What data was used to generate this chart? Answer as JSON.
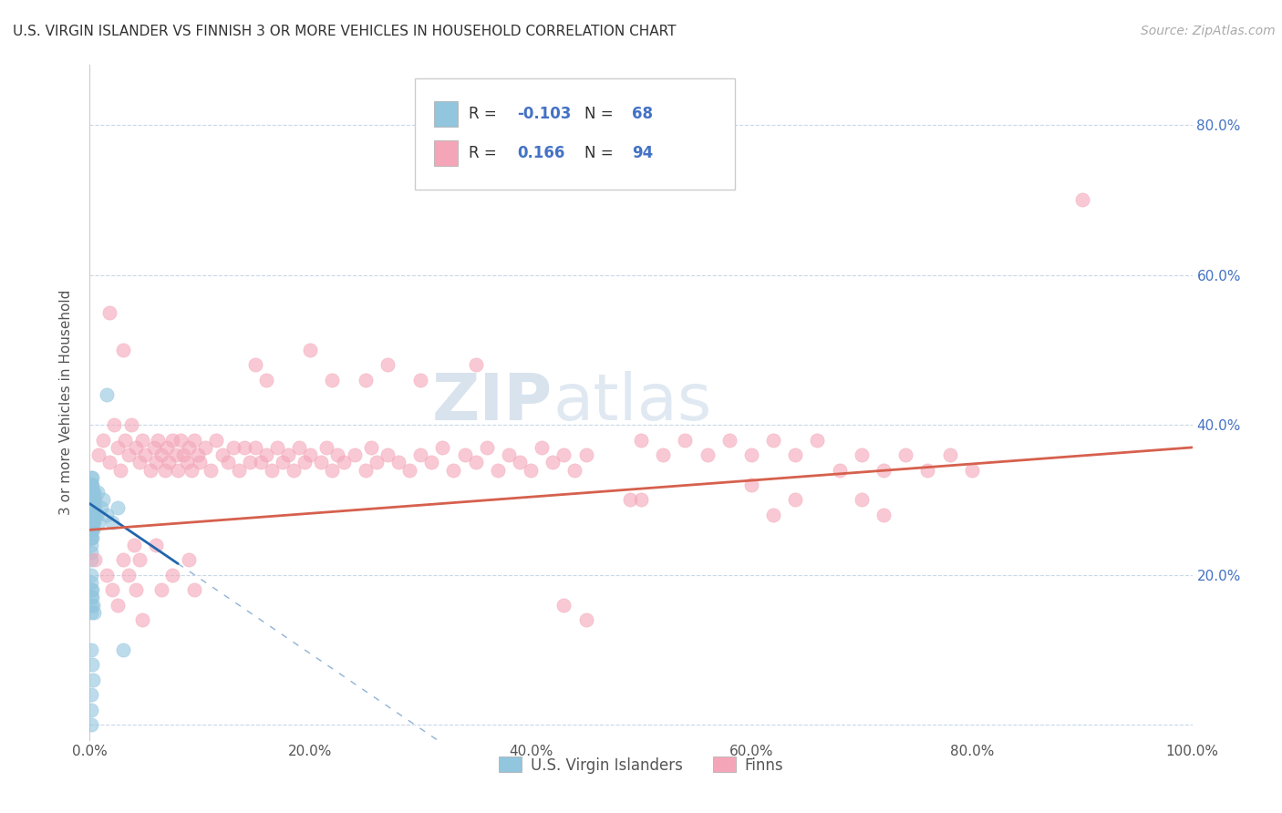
{
  "title": "U.S. VIRGIN ISLANDER VS FINNISH 3 OR MORE VEHICLES IN HOUSEHOLD CORRELATION CHART",
  "source_text": "Source: ZipAtlas.com",
  "ylabel": "3 or more Vehicles in Household",
  "xlim": [
    0.0,
    1.0
  ],
  "ylim": [
    -0.02,
    0.88
  ],
  "xtick_labels": [
    "0.0%",
    "20.0%",
    "40.0%",
    "60.0%",
    "80.0%",
    "100.0%"
  ],
  "xtick_vals": [
    0.0,
    0.2,
    0.4,
    0.6,
    0.8,
    1.0
  ],
  "ytick_labels": [
    "",
    "",
    "",
    "",
    ""
  ],
  "ytick_vals": [
    0.0,
    0.2,
    0.4,
    0.6,
    0.8
  ],
  "right_ytick_labels": [
    "20.0%",
    "40.0%",
    "60.0%",
    "80.0%"
  ],
  "right_ytick_vals": [
    0.2,
    0.4,
    0.6,
    0.8
  ],
  "watermark_zip": "ZIP",
  "watermark_atlas": "atlas",
  "legend_label1": "U.S. Virgin Islanders",
  "legend_label2": "Finns",
  "R1": "-0.103",
  "N1": "68",
  "R2": "0.166",
  "N2": "94",
  "blue_color": "#92c5de",
  "pink_color": "#f4a6b8",
  "blue_line_color": "#2166ac",
  "pink_line_color": "#d6604d",
  "background_color": "#ffffff",
  "grid_color": "#c8d8e8",
  "blue_scatter": [
    [
      0.001,
      0.28
    ],
    [
      0.001,
      0.3
    ],
    [
      0.001,
      0.32
    ],
    [
      0.001,
      0.29
    ],
    [
      0.001,
      0.26
    ],
    [
      0.001,
      0.31
    ],
    [
      0.001,
      0.27
    ],
    [
      0.001,
      0.33
    ],
    [
      0.001,
      0.25
    ],
    [
      0.001,
      0.24
    ],
    [
      0.001,
      0.22
    ],
    [
      0.001,
      0.28
    ],
    [
      0.001,
      0.3
    ],
    [
      0.001,
      0.27
    ],
    [
      0.001,
      0.29
    ],
    [
      0.001,
      0.31
    ],
    [
      0.001,
      0.26
    ],
    [
      0.001,
      0.28
    ],
    [
      0.001,
      0.3
    ],
    [
      0.001,
      0.25
    ],
    [
      0.001,
      0.23
    ],
    [
      0.001,
      0.32
    ],
    [
      0.001,
      0.27
    ],
    [
      0.001,
      0.29
    ],
    [
      0.002,
      0.3
    ],
    [
      0.002,
      0.28
    ],
    [
      0.002,
      0.27
    ],
    [
      0.002,
      0.31
    ],
    [
      0.002,
      0.26
    ],
    [
      0.002,
      0.29
    ],
    [
      0.002,
      0.33
    ],
    [
      0.002,
      0.25
    ],
    [
      0.002,
      0.28
    ],
    [
      0.002,
      0.3
    ],
    [
      0.002,
      0.27
    ],
    [
      0.002,
      0.32
    ],
    [
      0.003,
      0.29
    ],
    [
      0.003,
      0.27
    ],
    [
      0.003,
      0.31
    ],
    [
      0.003,
      0.28
    ],
    [
      0.003,
      0.3
    ],
    [
      0.003,
      0.26
    ],
    [
      0.004,
      0.28
    ],
    [
      0.004,
      0.31
    ],
    [
      0.004,
      0.27
    ],
    [
      0.005,
      0.29
    ],
    [
      0.005,
      0.3
    ],
    [
      0.006,
      0.28
    ],
    [
      0.007,
      0.31
    ],
    [
      0.008,
      0.27
    ],
    [
      0.01,
      0.29
    ],
    [
      0.012,
      0.3
    ],
    [
      0.015,
      0.28
    ],
    [
      0.02,
      0.27
    ],
    [
      0.025,
      0.29
    ],
    [
      0.001,
      0.18
    ],
    [
      0.001,
      0.19
    ],
    [
      0.001,
      0.17
    ],
    [
      0.001,
      0.2
    ],
    [
      0.001,
      0.16
    ],
    [
      0.001,
      0.15
    ],
    [
      0.002,
      0.18
    ],
    [
      0.002,
      0.17
    ],
    [
      0.003,
      0.16
    ],
    [
      0.004,
      0.15
    ],
    [
      0.001,
      0.1
    ],
    [
      0.002,
      0.08
    ],
    [
      0.003,
      0.06
    ]
  ],
  "blue_outliers": [
    [
      0.015,
      0.44
    ],
    [
      0.001,
      0.04
    ],
    [
      0.001,
      0.02
    ],
    [
      0.001,
      0.0
    ],
    [
      0.03,
      0.1
    ]
  ],
  "pink_scatter": [
    [
      0.008,
      0.36
    ],
    [
      0.012,
      0.38
    ],
    [
      0.018,
      0.35
    ],
    [
      0.022,
      0.4
    ],
    [
      0.025,
      0.37
    ],
    [
      0.028,
      0.34
    ],
    [
      0.032,
      0.38
    ],
    [
      0.035,
      0.36
    ],
    [
      0.038,
      0.4
    ],
    [
      0.042,
      0.37
    ],
    [
      0.045,
      0.35
    ],
    [
      0.048,
      0.38
    ],
    [
      0.05,
      0.36
    ],
    [
      0.055,
      0.34
    ],
    [
      0.058,
      0.37
    ],
    [
      0.06,
      0.35
    ],
    [
      0.062,
      0.38
    ],
    [
      0.065,
      0.36
    ],
    [
      0.068,
      0.34
    ],
    [
      0.07,
      0.37
    ],
    [
      0.072,
      0.35
    ],
    [
      0.075,
      0.38
    ],
    [
      0.078,
      0.36
    ],
    [
      0.08,
      0.34
    ],
    [
      0.082,
      0.38
    ],
    [
      0.085,
      0.36
    ],
    [
      0.088,
      0.35
    ],
    [
      0.09,
      0.37
    ],
    [
      0.092,
      0.34
    ],
    [
      0.095,
      0.38
    ],
    [
      0.098,
      0.36
    ],
    [
      0.1,
      0.35
    ],
    [
      0.105,
      0.37
    ],
    [
      0.11,
      0.34
    ],
    [
      0.115,
      0.38
    ],
    [
      0.12,
      0.36
    ],
    [
      0.125,
      0.35
    ],
    [
      0.13,
      0.37
    ],
    [
      0.135,
      0.34
    ],
    [
      0.14,
      0.37
    ],
    [
      0.145,
      0.35
    ],
    [
      0.15,
      0.37
    ],
    [
      0.155,
      0.35
    ],
    [
      0.16,
      0.36
    ],
    [
      0.165,
      0.34
    ],
    [
      0.17,
      0.37
    ],
    [
      0.175,
      0.35
    ],
    [
      0.18,
      0.36
    ],
    [
      0.185,
      0.34
    ],
    [
      0.19,
      0.37
    ],
    [
      0.195,
      0.35
    ],
    [
      0.2,
      0.36
    ],
    [
      0.21,
      0.35
    ],
    [
      0.215,
      0.37
    ],
    [
      0.22,
      0.34
    ],
    [
      0.225,
      0.36
    ],
    [
      0.23,
      0.35
    ],
    [
      0.24,
      0.36
    ],
    [
      0.25,
      0.34
    ],
    [
      0.255,
      0.37
    ],
    [
      0.26,
      0.35
    ],
    [
      0.27,
      0.36
    ],
    [
      0.28,
      0.35
    ],
    [
      0.29,
      0.34
    ],
    [
      0.3,
      0.36
    ],
    [
      0.31,
      0.35
    ],
    [
      0.32,
      0.37
    ],
    [
      0.33,
      0.34
    ],
    [
      0.34,
      0.36
    ],
    [
      0.35,
      0.35
    ],
    [
      0.36,
      0.37
    ],
    [
      0.37,
      0.34
    ],
    [
      0.38,
      0.36
    ],
    [
      0.39,
      0.35
    ],
    [
      0.4,
      0.34
    ],
    [
      0.41,
      0.37
    ],
    [
      0.42,
      0.35
    ],
    [
      0.43,
      0.36
    ],
    [
      0.44,
      0.34
    ],
    [
      0.45,
      0.36
    ],
    [
      0.005,
      0.22
    ],
    [
      0.015,
      0.2
    ],
    [
      0.02,
      0.18
    ],
    [
      0.025,
      0.16
    ],
    [
      0.03,
      0.22
    ],
    [
      0.035,
      0.2
    ],
    [
      0.04,
      0.24
    ],
    [
      0.042,
      0.18
    ],
    [
      0.045,
      0.22
    ],
    [
      0.048,
      0.14
    ],
    [
      0.06,
      0.24
    ],
    [
      0.065,
      0.18
    ],
    [
      0.075,
      0.2
    ],
    [
      0.09,
      0.22
    ],
    [
      0.095,
      0.18
    ],
    [
      0.5,
      0.3
    ],
    [
      0.6,
      0.32
    ],
    [
      0.62,
      0.28
    ],
    [
      0.64,
      0.3
    ],
    [
      0.7,
      0.3
    ],
    [
      0.72,
      0.28
    ],
    [
      0.018,
      0.55
    ],
    [
      0.03,
      0.5
    ],
    [
      0.15,
      0.48
    ],
    [
      0.16,
      0.46
    ],
    [
      0.2,
      0.5
    ],
    [
      0.22,
      0.46
    ],
    [
      0.25,
      0.46
    ],
    [
      0.27,
      0.48
    ],
    [
      0.3,
      0.46
    ],
    [
      0.35,
      0.48
    ],
    [
      0.5,
      0.38
    ],
    [
      0.52,
      0.36
    ],
    [
      0.54,
      0.38
    ],
    [
      0.56,
      0.36
    ],
    [
      0.58,
      0.38
    ],
    [
      0.6,
      0.36
    ],
    [
      0.62,
      0.38
    ],
    [
      0.64,
      0.36
    ],
    [
      0.66,
      0.38
    ],
    [
      0.68,
      0.34
    ],
    [
      0.7,
      0.36
    ],
    [
      0.72,
      0.34
    ],
    [
      0.74,
      0.36
    ],
    [
      0.76,
      0.34
    ],
    [
      0.78,
      0.36
    ],
    [
      0.8,
      0.34
    ],
    [
      0.9,
      0.7
    ],
    [
      0.49,
      0.3
    ],
    [
      0.43,
      0.16
    ],
    [
      0.45,
      0.14
    ]
  ]
}
